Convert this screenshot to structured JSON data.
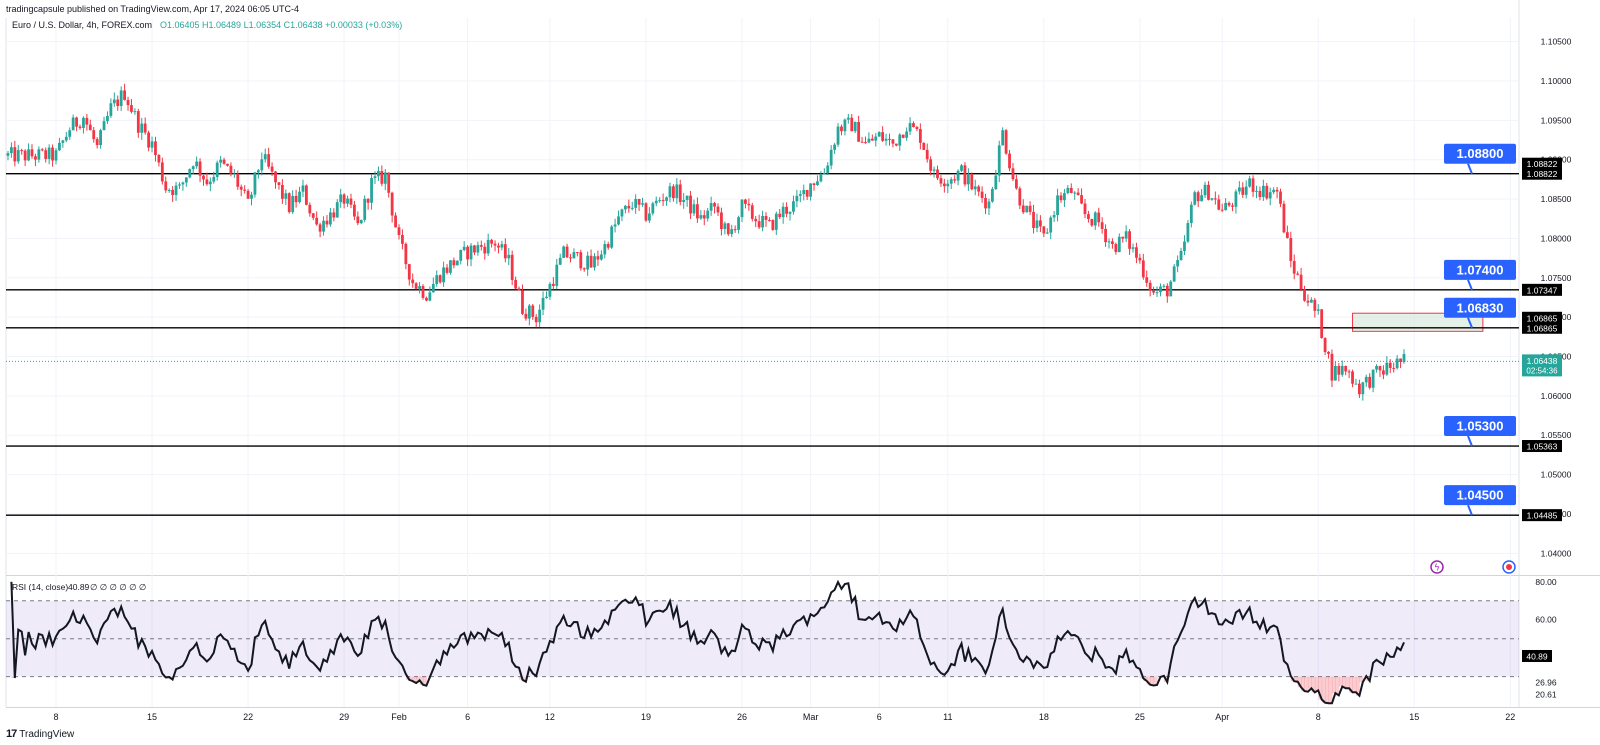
{
  "header": {
    "published_by": "tradingcapsule published on TradingView.com, Apr 17, 2024 06:05 UTC-4"
  },
  "legend": {
    "symbol": "Euro / U.S. Dollar, 4h, FOREX.com",
    "ohlc": "O1.06405 H1.06489 L1.06354 C1.06438 +0.00033 (+0.03%)"
  },
  "rsi_panel": {
    "label": "RSI (14, close)",
    "value_text": "40.89",
    "extra_text": "∅ ∅ ∅ ∅ ∅ ∅"
  },
  "footer": {
    "brand": "TradingView"
  },
  "colors": {
    "up": "#26a69a",
    "down": "#f23645",
    "level_label_bg": "#2962ff",
    "rsi_line": "#131722",
    "rsi_band": "#7e57c2",
    "rsi_os_fill": "#f23645",
    "zone_fill": "#cfe3d6",
    "zone_border": "#f23645"
  },
  "chart_data": [
    {
      "type": "candlestick",
      "title": "Euro / U.S. Dollar, 4h, FOREX.com",
      "y_axis": {
        "range": [
          1.0375,
          1.108
        ],
        "ticks": [
          "1.10500",
          "1.10000",
          "1.09500",
          "1.09000",
          "1.08500",
          "1.08000",
          "1.07500",
          "1.07000",
          "1.06500",
          "1.06000",
          "1.05500",
          "1.05000",
          "1.04500",
          "1.04000"
        ]
      },
      "x_axis": {
        "ticks": [
          "8",
          "15",
          "22",
          "29",
          "Feb",
          "6",
          "12",
          "19",
          "26",
          "Mar",
          "6",
          "11",
          "18",
          "25",
          "Apr",
          "8",
          "15",
          "22"
        ],
        "tick_day_index": [
          0,
          7,
          14,
          21,
          25,
          30,
          36,
          43,
          50,
          55,
          60,
          65,
          72,
          79,
          85,
          92,
          99,
          106
        ]
      },
      "close_path": [
        [
          0,
          1.0905
        ],
        [
          1,
          1.094
        ],
        [
          2,
          1.0955
        ],
        [
          3,
          1.0915
        ],
        [
          4,
          1.0965
        ],
        [
          5,
          1.0985
        ],
        [
          6,
          1.0945
        ],
        [
          7,
          1.092
        ],
        [
          8,
          1.0865
        ],
        [
          9,
          1.0862
        ],
        [
          10,
          1.09
        ],
        [
          11,
          1.0872
        ],
        [
          12,
          1.0895
        ],
        [
          13,
          1.0878
        ],
        [
          14,
          1.0842
        ],
        [
          15,
          1.0905
        ],
        [
          16,
          1.087
        ],
        [
          17,
          1.084
        ],
        [
          18,
          1.086
        ],
        [
          19,
          1.0815
        ],
        [
          20,
          1.083
        ],
        [
          21,
          1.085
        ],
        [
          22,
          1.0815
        ],
        [
          23,
          1.087
        ],
        [
          24,
          1.088
        ],
        [
          25,
          1.0795
        ],
        [
          26,
          1.0745
        ],
        [
          27,
          1.073
        ],
        [
          28,
          1.0755
        ],
        [
          29,
          1.077
        ],
        [
          30,
          1.0783
        ],
        [
          31,
          1.079
        ],
        [
          32,
          1.0795
        ],
        [
          33,
          1.077
        ],
        [
          34,
          1.0712
        ],
        [
          35,
          1.07
        ],
        [
          36,
          1.074
        ],
        [
          37,
          1.078
        ],
        [
          38,
          1.0775
        ],
        [
          39,
          1.0765
        ],
        [
          40,
          1.079
        ],
        [
          41,
          1.0825
        ],
        [
          42,
          1.0845
        ],
        [
          43,
          1.083
        ],
        [
          44,
          1.085
        ],
        [
          45,
          1.0862
        ],
        [
          46,
          1.0845
        ],
        [
          47,
          1.0825
        ],
        [
          48,
          1.084
        ],
        [
          49,
          1.08
        ],
        [
          50,
          1.084
        ],
        [
          51,
          1.0825
        ],
        [
          52,
          1.0815
        ],
        [
          53,
          1.0835
        ],
        [
          54,
          1.0845
        ],
        [
          55,
          1.087
        ],
        [
          56,
          1.0885
        ],
        [
          57,
          1.094
        ],
        [
          58,
          1.0945
        ],
        [
          59,
          1.092
        ],
        [
          60,
          1.093
        ],
        [
          61,
          1.092
        ],
        [
          62,
          1.0945
        ],
        [
          63,
          1.093
        ],
        [
          64,
          1.088
        ],
        [
          65,
          1.0875
        ],
        [
          66,
          1.0885
        ],
        [
          67,
          1.086
        ],
        [
          68,
          1.0845
        ],
        [
          69,
          1.0935
        ],
        [
          70,
          1.086
        ],
        [
          71,
          1.0825
        ],
        [
          72,
          1.08
        ],
        [
          73,
          1.085
        ],
        [
          74,
          1.086
        ],
        [
          75,
          1.083
        ],
        [
          76,
          1.082
        ],
        [
          77,
          1.079
        ],
        [
          78,
          1.08
        ],
        [
          79,
          1.077
        ],
        [
          80,
          1.073
        ],
        [
          81,
          1.0735
        ],
        [
          82,
          1.0775
        ],
        [
          83,
          1.0855
        ],
        [
          84,
          1.086
        ],
        [
          85,
          1.0835
        ],
        [
          86,
          1.085
        ],
        [
          87,
          1.087
        ],
        [
          88,
          1.086
        ],
        [
          89,
          1.086
        ],
        [
          90,
          1.077
        ],
        [
          91,
          1.073
        ],
        [
          92,
          1.07
        ],
        [
          93,
          1.063
        ],
        [
          94,
          1.0635
        ],
        [
          95,
          1.061
        ],
        [
          96,
          1.0625
        ],
        [
          97,
          1.0635
        ],
        [
          98,
          1.0644
        ]
      ],
      "last_price": "1.06438",
      "countdown": "02:54:36",
      "horizontal_levels": [
        {
          "price": 1.08822,
          "axis_label": "1.08822",
          "callout": "1.08800"
        },
        {
          "price": 1.07347,
          "axis_label": "1.07347",
          "callout": "1.07400"
        },
        {
          "price": 1.06865,
          "axis_label": "1.06865",
          "callout": "1.06830"
        },
        {
          "price": 1.05363,
          "axis_label": "1.05363",
          "callout": "1.05300"
        },
        {
          "price": 1.04485,
          "axis_label": "1.04485",
          "callout": "1.04500"
        }
      ],
      "extra_axis_labels": [
        "1.08822",
        "1.06865"
      ],
      "zone": {
        "low": 1.0682,
        "high": 1.0705,
        "from_day": 94.5,
        "to_day": 104
      }
    },
    {
      "type": "line",
      "title": "RSI (14, close)",
      "y_axis": {
        "range": [
          14,
          82
        ],
        "ticks": [
          "80.00",
          "60.00",
          "26.96",
          "20.61"
        ]
      },
      "bands": {
        "upper": 70,
        "middle": 50,
        "lower": 30
      },
      "current_value": "40.89"
    }
  ]
}
